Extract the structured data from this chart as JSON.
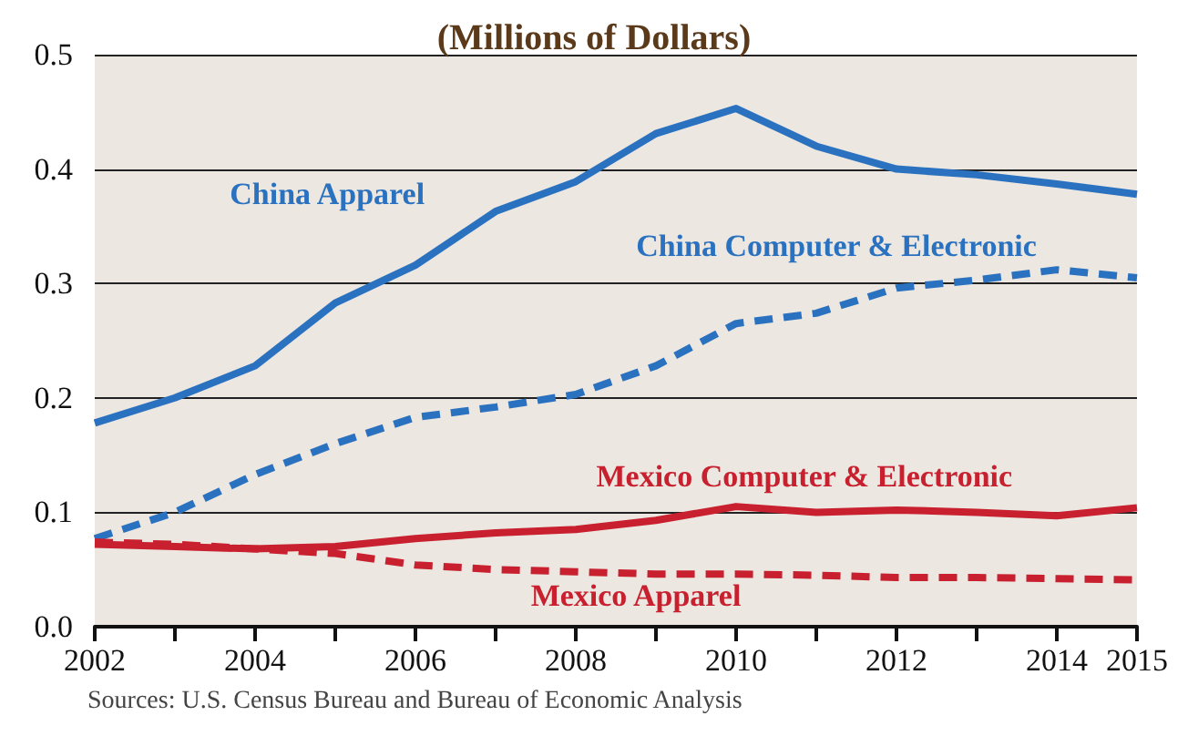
{
  "chart_data": {
    "type": "line",
    "title": "(Millions of Dollars)",
    "x": [
      2002,
      2003,
      2004,
      2005,
      2006,
      2007,
      2008,
      2009,
      2010,
      2011,
      2012,
      2013,
      2014,
      2015
    ],
    "series": [
      {
        "name": "China Apparel",
        "color": "#2a72c0",
        "line_style": "solid",
        "values": [
          0.178,
          0.2,
          0.228,
          0.283,
          0.316,
          0.363,
          0.389,
          0.431,
          0.453,
          0.42,
          0.4,
          0.395,
          0.387,
          0.378
        ]
      },
      {
        "name": "China Computer & Electronic",
        "color": "#2a72c0",
        "line_style": "dashed",
        "values": [
          0.077,
          0.1,
          0.133,
          0.16,
          0.183,
          0.192,
          0.203,
          0.228,
          0.265,
          0.274,
          0.296,
          0.303,
          0.312,
          0.305
        ]
      },
      {
        "name": "Mexico Computer & Electronic",
        "color": "#c8202f",
        "line_style": "solid",
        "values": [
          0.072,
          0.07,
          0.068,
          0.07,
          0.077,
          0.082,
          0.085,
          0.093,
          0.105,
          0.1,
          0.102,
          0.1,
          0.097,
          0.104
        ]
      },
      {
        "name": "Mexico Apparel",
        "color": "#c8202f",
        "line_style": "dashed",
        "values": [
          0.074,
          0.072,
          0.068,
          0.064,
          0.054,
          0.05,
          0.048,
          0.046,
          0.046,
          0.045,
          0.043,
          0.043,
          0.042,
          0.041
        ]
      }
    ],
    "xlim": [
      2002,
      2015
    ],
    "xticks": [
      2002,
      {
        "value": 2003,
        "label": null
      },
      2004,
      {
        "value": 2005,
        "label": null
      },
      2006,
      {
        "value": 2007,
        "label": null
      },
      2008,
      {
        "value": 2009,
        "label": null
      },
      2010,
      {
        "value": 2011,
        "label": null
      },
      2012,
      {
        "value": 2013,
        "label": null
      },
      2014,
      2015
    ],
    "ylim": [
      0,
      0.5
    ],
    "yticks": [
      {
        "value": 0,
        "label": "0.0"
      },
      0.1,
      0.2,
      0.3,
      0.4,
      0.5
    ],
    "grid": "y",
    "legend": false,
    "marker": "none",
    "annotations": [
      "Sources: U.S. Census Bureau and Bureau of Economic Analysis"
    ]
  }
}
